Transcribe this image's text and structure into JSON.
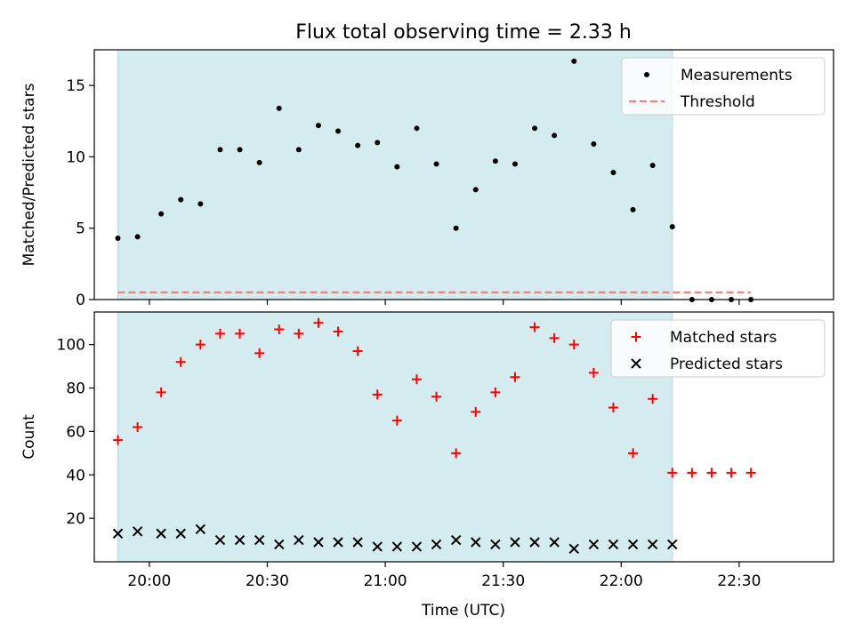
{
  "chart_data": {
    "type": "scatter",
    "title": "Flux total observing time = 2.33 h",
    "xlabel": "Time (UTC)",
    "x_unit": "UTC time",
    "xlim": [
      "19:46",
      "22:54"
    ],
    "xticks": [
      "20:00",
      "20:30",
      "21:00",
      "21:30",
      "22:00",
      "22:30"
    ],
    "shaded_interval": [
      "19:52",
      "22:13"
    ],
    "shade_color": "#d4ebf0",
    "times": [
      "19:52",
      "19:57",
      "20:03",
      "20:08",
      "20:13",
      "20:18",
      "20:23",
      "20:28",
      "20:33",
      "20:38",
      "20:43",
      "20:48",
      "20:53",
      "20:58",
      "21:03",
      "21:08",
      "21:13",
      "21:18",
      "21:23",
      "21:28",
      "21:33",
      "21:38",
      "21:43",
      "21:48",
      "21:53",
      "21:58",
      "22:03",
      "22:08",
      "22:13",
      "22:18",
      "22:23",
      "22:28",
      "22:33"
    ],
    "panels": [
      {
        "ylabel": "Matched/Predicted stars",
        "ylim": [
          0,
          17.5
        ],
        "yticks": [
          0,
          5,
          10,
          15
        ],
        "legend_position": "upper right",
        "series": [
          {
            "name": "Measurements",
            "marker": "dot",
            "color": "#000000",
            "values": [
              4.3,
              4.4,
              6.0,
              7.0,
              6.7,
              10.5,
              10.5,
              9.6,
              13.4,
              10.5,
              12.2,
              11.8,
              10.8,
              11.0,
              9.3,
              12.0,
              9.5,
              5.0,
              7.7,
              9.7,
              9.5,
              12.0,
              11.5,
              16.7,
              10.9,
              8.9,
              6.3,
              9.4,
              5.1,
              0,
              0,
              0,
              0
            ]
          },
          {
            "name": "Threshold",
            "marker": "dashed-line",
            "color": "#f08080",
            "x_range": [
              "19:52",
              "22:33"
            ],
            "value": 0.5
          }
        ]
      },
      {
        "ylabel": "Count",
        "ylim": [
          0,
          115
        ],
        "yticks": [
          20,
          40,
          60,
          80,
          100
        ],
        "legend_position": "upper right",
        "series": [
          {
            "name": "Matched stars",
            "marker": "plus",
            "color": "#ff0000",
            "values": [
              56,
              62,
              78,
              92,
              100,
              105,
              105,
              96,
              107,
              105,
              110,
              106,
              97,
              77,
              65,
              84,
              76,
              50,
              69,
              78,
              85,
              108,
              103,
              100,
              87,
              71,
              50,
              75,
              41,
              41,
              41,
              41,
              41
            ]
          },
          {
            "name": "Predicted stars",
            "marker": "x",
            "color": "#000000",
            "values": [
              13,
              14,
              13,
              13,
              15,
              10,
              10,
              10,
              8,
              10,
              9,
              9,
              9,
              7,
              7,
              7,
              8,
              10,
              9,
              8,
              9,
              9,
              9,
              6,
              8,
              8,
              8,
              8,
              8
            ]
          }
        ]
      }
    ]
  }
}
